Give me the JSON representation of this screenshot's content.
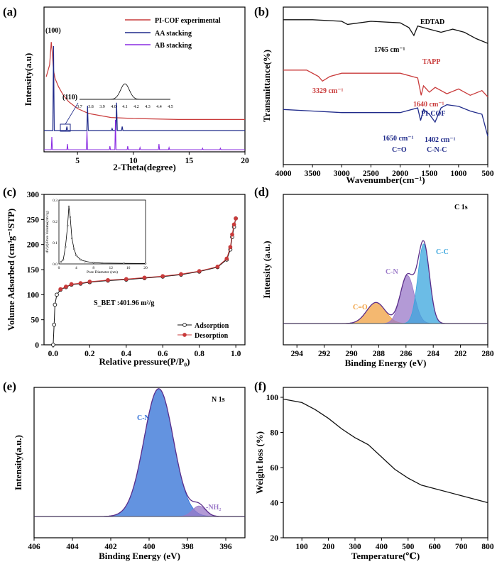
{
  "colors": {
    "black": "#111111",
    "red": "#c93b3b",
    "navy": "#1f2a8a",
    "purple": "#8a2be2",
    "blue": "#2f6fd6",
    "cyan": "#3aa6dd",
    "orange": "#f0a040",
    "lavender": "#9a78c8"
  },
  "chart_data": [
    {
      "id": "a",
      "panel_label": "(a)",
      "type": "line",
      "xlabel": "2-Theta(degree)",
      "ylabel": "Intensity(a.u)",
      "xlim": [
        2,
        20
      ],
      "xticks": [
        5,
        10,
        15,
        20
      ],
      "legend": [
        "PI-COF experimental",
        "AA stacking",
        "AB stacking"
      ],
      "series": [
        {
          "name": "PI-COF experimental",
          "x": [
            2.2,
            2.5,
            2.65,
            2.75,
            2.85,
            3.0,
            3.3,
            3.7,
            4.2,
            5,
            6,
            8,
            10,
            14,
            20
          ],
          "y": [
            0.62,
            0.74,
            0.97,
            0.85,
            0.68,
            0.6,
            0.52,
            0.44,
            0.37,
            0.3,
            0.25,
            0.21,
            0.2,
            0.19,
            0.19
          ]
        },
        {
          "name": "AA stacking",
          "peaks": [
            [
              2.85,
              0.85
            ],
            [
              4.05,
              0.04
            ],
            [
              5.9,
              0.25
            ],
            [
              8.1,
              0.02
            ],
            [
              8.5,
              0.28
            ],
            [
              9.0,
              0.04
            ]
          ]
        },
        {
          "name": "AB stacking",
          "peaks": [
            [
              2.7,
              0.18
            ],
            [
              4.1,
              0.08
            ],
            [
              5.85,
              0.26
            ],
            [
              7.9,
              0.05
            ],
            [
              8.4,
              0.42
            ],
            [
              9.5,
              0.05
            ],
            [
              10.6,
              0.03
            ],
            [
              12.3,
              0.08
            ],
            [
              13.2,
              0.03
            ],
            [
              16.2,
              0.02
            ],
            [
              17.8,
              0.02
            ]
          ]
        }
      ],
      "annotations": [
        "(100)",
        "(110)"
      ],
      "inset": {
        "xticks": [
          "3.7",
          "3.8",
          "3.9",
          "4.0",
          "4.1",
          "4.2",
          "4.3",
          "4.4",
          "4.5"
        ],
        "peak_center": 4.1
      }
    },
    {
      "id": "b",
      "panel_label": "(b)",
      "type": "line",
      "xlabel": "Wavenumber(cm⁻¹)",
      "ylabel": "Transmittance(%)",
      "xlim": [
        4000,
        500
      ],
      "xticks": [
        4000,
        3500,
        3000,
        2500,
        2000,
        1500,
        1000,
        500
      ],
      "series": [
        {
          "name": "EDTAD",
          "x": [
            4000,
            3500,
            3000,
            2900,
            2500,
            2000,
            1850,
            1765,
            1700,
            1500,
            1300,
            1100,
            900,
            700,
            500
          ],
          "y": [
            0.92,
            0.92,
            0.91,
            0.89,
            0.91,
            0.9,
            0.87,
            0.82,
            0.88,
            0.86,
            0.84,
            0.86,
            0.84,
            0.8,
            0.77
          ]
        },
        {
          "name": "TAPP",
          "x": [
            4000,
            3600,
            3400,
            3329,
            3200,
            3000,
            2500,
            2000,
            1700,
            1640,
            1600,
            1500,
            1400,
            1200,
            1000,
            800,
            600,
            500
          ],
          "y": [
            0.6,
            0.6,
            0.56,
            0.53,
            0.56,
            0.58,
            0.58,
            0.58,
            0.55,
            0.44,
            0.5,
            0.46,
            0.49,
            0.45,
            0.48,
            0.44,
            0.47,
            0.43
          ]
        },
        {
          "name": "PI-COF",
          "x": [
            4000,
            3500,
            3000,
            2500,
            2000,
            1700,
            1650,
            1600,
            1500,
            1402,
            1300,
            1200,
            1000,
            800,
            600,
            500
          ],
          "y": [
            0.35,
            0.34,
            0.33,
            0.33,
            0.33,
            0.36,
            0.28,
            0.35,
            0.32,
            0.27,
            0.36,
            0.38,
            0.37,
            0.34,
            0.32,
            0.18
          ]
        }
      ],
      "annotations": [
        "EDTAD",
        "1765 cm⁻¹",
        "TAPP",
        "3329 cm⁻¹",
        "1640 cm⁻¹",
        "PI-COF",
        "1650 cm⁻¹",
        "C=O",
        "1402 cm⁻¹",
        "C-N-C"
      ]
    },
    {
      "id": "c",
      "panel_label": "(c)",
      "type": "line",
      "xlabel": "Relative pressure(P/P₀)",
      "ylabel": "Volume Adsorbed (cm³g⁻¹STP)",
      "xlim": [
        -0.05,
        1.05
      ],
      "ylim": [
        0,
        300
      ],
      "xticks": [
        0.0,
        0.2,
        0.4,
        0.6,
        0.8,
        1.0
      ],
      "yticks": [
        0,
        50,
        100,
        150,
        200,
        250,
        300
      ],
      "series": [
        {
          "name": "Adsorption",
          "x": [
            0,
            0.005,
            0.01,
            0.02,
            0.04,
            0.07,
            0.1,
            0.15,
            0.2,
            0.3,
            0.4,
            0.5,
            0.6,
            0.7,
            0.8,
            0.9,
            0.95,
            0.97,
            0.98,
            0.99,
            1.0
          ],
          "y": [
            0,
            40,
            80,
            100,
            110,
            115,
            120,
            122,
            125,
            128,
            130,
            133,
            136,
            140,
            146,
            155,
            170,
            190,
            215,
            235,
            252
          ]
        },
        {
          "name": "Desorption",
          "x": [
            1.0,
            0.99,
            0.98,
            0.97,
            0.95,
            0.9,
            0.8,
            0.7,
            0.6,
            0.5,
            0.4,
            0.3,
            0.2,
            0.15,
            0.1,
            0.07,
            0.04
          ],
          "y": [
            252,
            240,
            220,
            195,
            172,
            156,
            147,
            141,
            137,
            134,
            131,
            129,
            126,
            123,
            121,
            116,
            111
          ]
        }
      ],
      "annotation": "S_BET :401.96 m²/g",
      "legend": [
        "Adsorption",
        "Desorption"
      ],
      "inset": {
        "xlabel": "Pore Diameter (nm)",
        "ylabel": "dV(d) Pore Volume(cm³/g)",
        "xticks": [
          "0",
          "4",
          "8",
          "12",
          "16",
          "20"
        ],
        "yticks": [
          "0.0",
          "0.1",
          "0.2",
          "0.3"
        ],
        "series": {
          "x": [
            0.5,
            1,
            1.5,
            2,
            2.3,
            2.6,
            3,
            3.5,
            4,
            5,
            6,
            8,
            10,
            15,
            20
          ],
          "y": [
            0.01,
            0.02,
            0.08,
            0.18,
            0.27,
            0.22,
            0.12,
            0.07,
            0.04,
            0.02,
            0.012,
            0.006,
            0.004,
            0.003,
            0.002
          ]
        }
      }
    },
    {
      "id": "d",
      "panel_label": "(d)",
      "type": "area",
      "title": "C 1s",
      "xlabel": "Binding Energy (eV)",
      "ylabel": "Intensity (a.u.)",
      "xlim": [
        295,
        280
      ],
      "xticks": [
        294,
        292,
        290,
        288,
        286,
        284,
        282,
        280
      ],
      "components": [
        {
          "name": "C=O",
          "center": 288.2,
          "height": 0.14,
          "fwhm": 1.6
        },
        {
          "name": "C-N",
          "center": 285.9,
          "height": 0.32,
          "fwhm": 1.2
        },
        {
          "name": "C-C",
          "center": 284.7,
          "height": 0.53,
          "fwhm": 1.0
        }
      ]
    },
    {
      "id": "e",
      "panel_label": "(e)",
      "type": "area",
      "title": "N 1s",
      "xlabel": "Binding Energy (eV)",
      "ylabel": "Intensity(a.u.)",
      "xlim": [
        406,
        395
      ],
      "xticks": [
        406,
        404,
        402,
        400,
        398,
        396
      ],
      "components": [
        {
          "name": "C-N",
          "center": 399.5,
          "height": 0.85,
          "fwhm": 1.8
        },
        {
          "name": "-NH₂",
          "center": 397.4,
          "height": 0.07,
          "fwhm": 0.8
        }
      ]
    },
    {
      "id": "f",
      "panel_label": "(f)",
      "type": "line",
      "xlabel": "Temperature(℃)",
      "ylabel": "Weight loss (%)",
      "xlim": [
        30,
        800
      ],
      "ylim": [
        20,
        100
      ],
      "xticks": [
        100,
        200,
        300,
        400,
        500,
        600,
        700,
        800
      ],
      "yticks": [
        20,
        40,
        60,
        80,
        100
      ],
      "series": [
        {
          "name": "",
          "x": [
            30,
            100,
            150,
            200,
            250,
            300,
            350,
            400,
            450,
            500,
            550,
            600,
            700,
            800
          ],
          "y": [
            99,
            97,
            93,
            88,
            82,
            77,
            73,
            66,
            59,
            54,
            50,
            48,
            44,
            40
          ]
        }
      ]
    }
  ]
}
